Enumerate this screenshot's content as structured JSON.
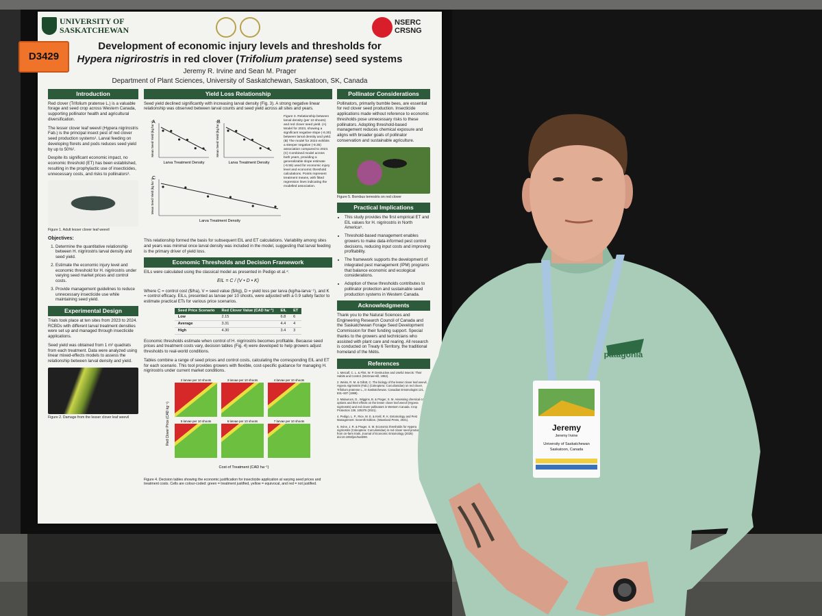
{
  "booth_number": "D3429",
  "poster": {
    "logo_left": "UNIVERSITY OF SASKATCHEWAN",
    "logo_right": "NSERC CRSNG",
    "title_line1": "Development of economic injury levels and thresholds for",
    "title_line2": [
      "Hypera nigrirostris",
      " in red clover (",
      "Trifolium pratense",
      ") seed systems"
    ],
    "authors": "Jeremy R. Irvine and Sean M. Prager",
    "affiliation": "Department of Plant Sciences, University of Saskatchewan, Saskatoon, SK, Canada",
    "columns": [
      [
        {
          "heading": "Introduction"
        },
        {
          "text": "Red clover (Trifolium pratense L.) is a valuable forage and seed crop across Western Canada, supporting pollinator health and agricultural diversification."
        },
        {
          "text": "The lesser clover leaf weevil (Hypera nigrirostris Fab.) is the principal insect pest of red clover seed production systems¹. Larval feeding on developing florets and pods reduces seed yield by up to 50%²."
        },
        {
          "text": "Despite its significant economic impact, no economic threshold (ET) has been established, resulting in the prophylactic use of insecticides, unnecessary costs, and risks to pollinators³."
        },
        {
          "photo_caption": "Figure 1. Adult lesser clover leaf weevil"
        },
        {
          "subheading": "Objectives:"
        },
        {
          "list": [
            "Determine the quantitative relationship between H. nigrirostris larval density and seed yield.",
            "Estimate the economic injury level and economic threshold for H. nigrirostris under varying seed market prices and control costs.",
            "Provide management guidelines to reduce unnecessary insecticide use while maintaining seed yield."
          ]
        },
        {
          "heading": "Experimental Design"
        },
        {
          "text": "Trials took place at ten sites from 2023 to 2024. RCBDs with different larval treatment densities were set up and managed through insecticide applications."
        },
        {
          "text": "Seed yield was obtained from 1 m² quadrats from each treatment. Data were analyzed using linear mixed-effects models to assess the relationship between larval density and yield."
        },
        {
          "photo_caption": "Figure 2. Damage from the lesser clover leaf weevil"
        }
      ],
      [
        {
          "heading": "Yield Loss Relationship"
        },
        {
          "text": "Seed yield declined significantly with increasing larval density (Fig. 3). A strong negative linear relationship was observed between larval counts and seed yield across all sites and years."
        },
        {
          "yield_chart": {
            "panels": [
              "A",
              "B",
              "C"
            ],
            "y_label": "Mean Seed Yield (kg ha⁻¹)",
            "x_label": "Larva Treatment Density",
            "caption": "Figure 3. Relationship between larval density (per 10 shoots) and red clover seed yield. (A) Model for 2023, showing a significant negative slope (-6.30) between larval density and yield. (B) The model for 2024 exhibits a steeper negative (-8.35) association compared to 2023. (C) Combined model across both years, providing a generalizable slope estimate (-6.55) used for economic injury level and economic threshold calculations. Points represent treatment means, with fitted regression lines indicating the modelled association."
          }
        },
        {
          "text": "This relationship formed the basis for subsequent EIL and ET calculations. Variability among sites and years was minimal once larval density was included in the model, suggesting that larval feeding is the primary driver of yield loss."
        },
        {
          "heading": "Economic Thresholds and Decision Framework"
        },
        {
          "text": "EILs were calculated using the classical model as presented in Pedigo et al.⁴:"
        },
        {
          "formula": "EIL = C / (V • D • K)"
        },
        {
          "text": "Where C = control cost ($/ha), V = seed value ($/kg), D = yield loss per larva (kg/ha-larva⁻¹), and K = control efficacy. EILs, presented as larvae per 10 shoots, were adjusted with a 0.9 safety factor to estimate practical ETs for various price scenarios."
        },
        {
          "table": {
            "header": [
              "Seed Price Scenario",
              "Red Clover Value (CAD ha⁻¹)",
              "EIL",
              "ET"
            ],
            "rows": [
              [
                "Low",
                "2.15",
                "6.8",
                "6"
              ],
              [
                "Average",
                "3.31",
                "4.4",
                "4"
              ],
              [
                "High",
                "4.30",
                "3.4",
                "3"
              ]
            ]
          }
        },
        {
          "text": "Economic thresholds estimate when control of H. nigrirostris becomes profitable. Because seed prices and treatment costs vary, decision tables (Fig. 4) were developed to help growers adjust thresholds to real-world conditions."
        },
        {
          "text": "Tables combine a range of seed prices and control costs, calculating the corresponding EIL and ET for each scenario. This tool provides growers with flexible, cost-specific guidance for managing H. nigrirostris under current market conditions."
        },
        {
          "heatmap": {
            "titles": [
              "2 larvae per 10 shoots",
              "3 larvae per 10 shoots",
              "4 larvae per 10 shoots",
              "5 larvae per 10 shoots",
              "6 larvae per 10 shoots",
              "7 larvae per 10 shoots"
            ],
            "y_label": "Red Clover Price (CAD kg⁻¹)",
            "x_label": "Cost of Treatment (CAD ha⁻¹)",
            "caption": "Figure 4. Decision tables showing the economic justification for insecticide application at varying seed prices and treatment costs. Cells are colour-coded: green = treatment justified, yellow = equivocal, and red = not justified."
          }
        }
      ],
      [
        {
          "heading": "Pollinator Considerations"
        },
        {
          "text": "Pollinators, primarily bumble bees, are essential for red clover seed production. Insecticide applications made without reference to economic thresholds pose unnecessary risks to these pollinators. Adopting threshold-based management reduces chemical exposure and aligns with broader goals of pollinator conservation and sustainable agriculture."
        },
        {
          "photo_caption": "Figure 5. Bombus terrestris on red clover"
        },
        {
          "heading": "Practical Implications"
        },
        {
          "bullets": [
            "This study provides the first empirical ET and EIL values for H. nigrirostris in North America⁵.",
            "Threshold-based management enables growers to make data-informed pest control decisions, reducing input costs and improving profitability.",
            "The framework supports the development of integrated pest management (IPM) programs that balance economic and ecological considerations.",
            "Adoption of these thresholds contributes to pollinator protection and sustainable seed production systems in Western Canada."
          ]
        },
        {
          "heading": "Acknowledgments"
        },
        {
          "text": "Thank you to the Natural Sciences and Engineering Research Council of Canada and the Saskatchewan Forage Seed Development Commission for their funding support. Special thanks to the growers and technicians who assisted with plant care and rearing. All research is conducted on Treaty 6 Territory, the traditional homeland of the Métis."
        },
        {
          "heading": "References"
        },
        {
          "refs": [
            "1. Metcalf, C. L. & Flint, W. P. Destructive and Useful Insects: Their Habits and Control. (McGraw-Hill, 1962).",
            "2. Weiss, R. M. & Gillott, C. The biology of the lesser clover leaf weevil, Hypera nigrirostris (Fab.) (Coleoptera: Curculionidae) on red clover, Trifolium pratense L., in Saskatchewan. Canadian Entomologist 121, 831–837 (1989).",
            "3. Malaurucs, D., Wiggins, B. & Prager, S. M. Assessing chemical control options and their effects on the lesser clover leaf weevil (Hypera nigrirostris) and red clover pollinators in Western Canada. Crop Protection 139, 105375 (2021).",
            "4. Pedigo, L. P., Rice, M. E. & Krell, R. K. Entomology and Pest Management: Seventh Edition. (Waveland Press, 2021).",
            "5. Irvine, J. R. & Prager, S. M. Economic thresholds for Hypera nigrirostris (Coleoptera: Curculionidae) in red clover seed production from on-farm trials. Journal of Economic Entomology (2025) doi:10.1093/jee/toaf290."
          ]
        }
      ]
    ]
  },
  "badge": {
    "name": "Jeremy",
    "full_name": "Jeremy Irvine",
    "institution": "University of Saskatchewan",
    "city": "Saskatoon, Canada"
  },
  "sweatshirt_logo": "patagonia"
}
